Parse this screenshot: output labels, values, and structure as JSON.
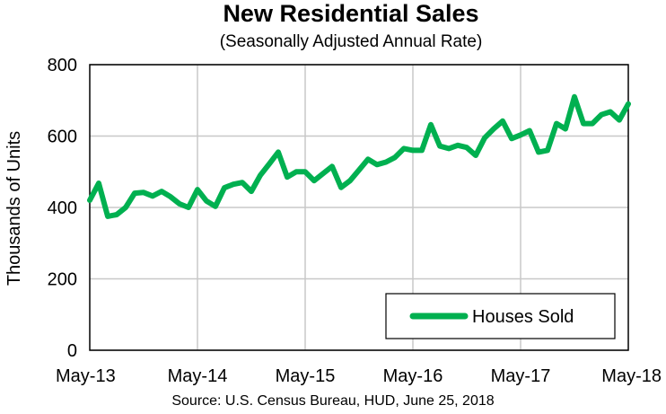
{
  "chart_data": {
    "type": "line",
    "title": "New Residential Sales",
    "subtitle": "(Seasonally Adjusted Annual Rate)",
    "ylabel": "Thousands of Units",
    "xlabel": "",
    "ylim": [
      0,
      800
    ],
    "y_ticks": [
      "0",
      "200",
      "400",
      "600",
      "800"
    ],
    "x_ticks": [
      "May-13",
      "May-14",
      "May-15",
      "May-16",
      "May-17",
      "May-18"
    ],
    "grid": true,
    "legend_position": "bottom-right",
    "series": [
      {
        "name": "Houses Sold",
        "color": "#00B050",
        "values": [
          420,
          468,
          375,
          380,
          400,
          440,
          442,
          432,
          445,
          430,
          410,
          400,
          450,
          418,
          403,
          455,
          465,
          470,
          445,
          490,
          522,
          555,
          485,
          500,
          500,
          475,
          495,
          515,
          456,
          475,
          505,
          535,
          520,
          527,
          540,
          565,
          560,
          560,
          632,
          572,
          565,
          574,
          568,
          546,
          595,
          620,
          642,
          593,
          603,
          615,
          555,
          560,
          635,
          620,
          710,
          635,
          635,
          660,
          668,
          645,
          690
        ]
      }
    ],
    "source": "Source:  U.S. Census Bureau, HUD, June 25, 2018"
  }
}
